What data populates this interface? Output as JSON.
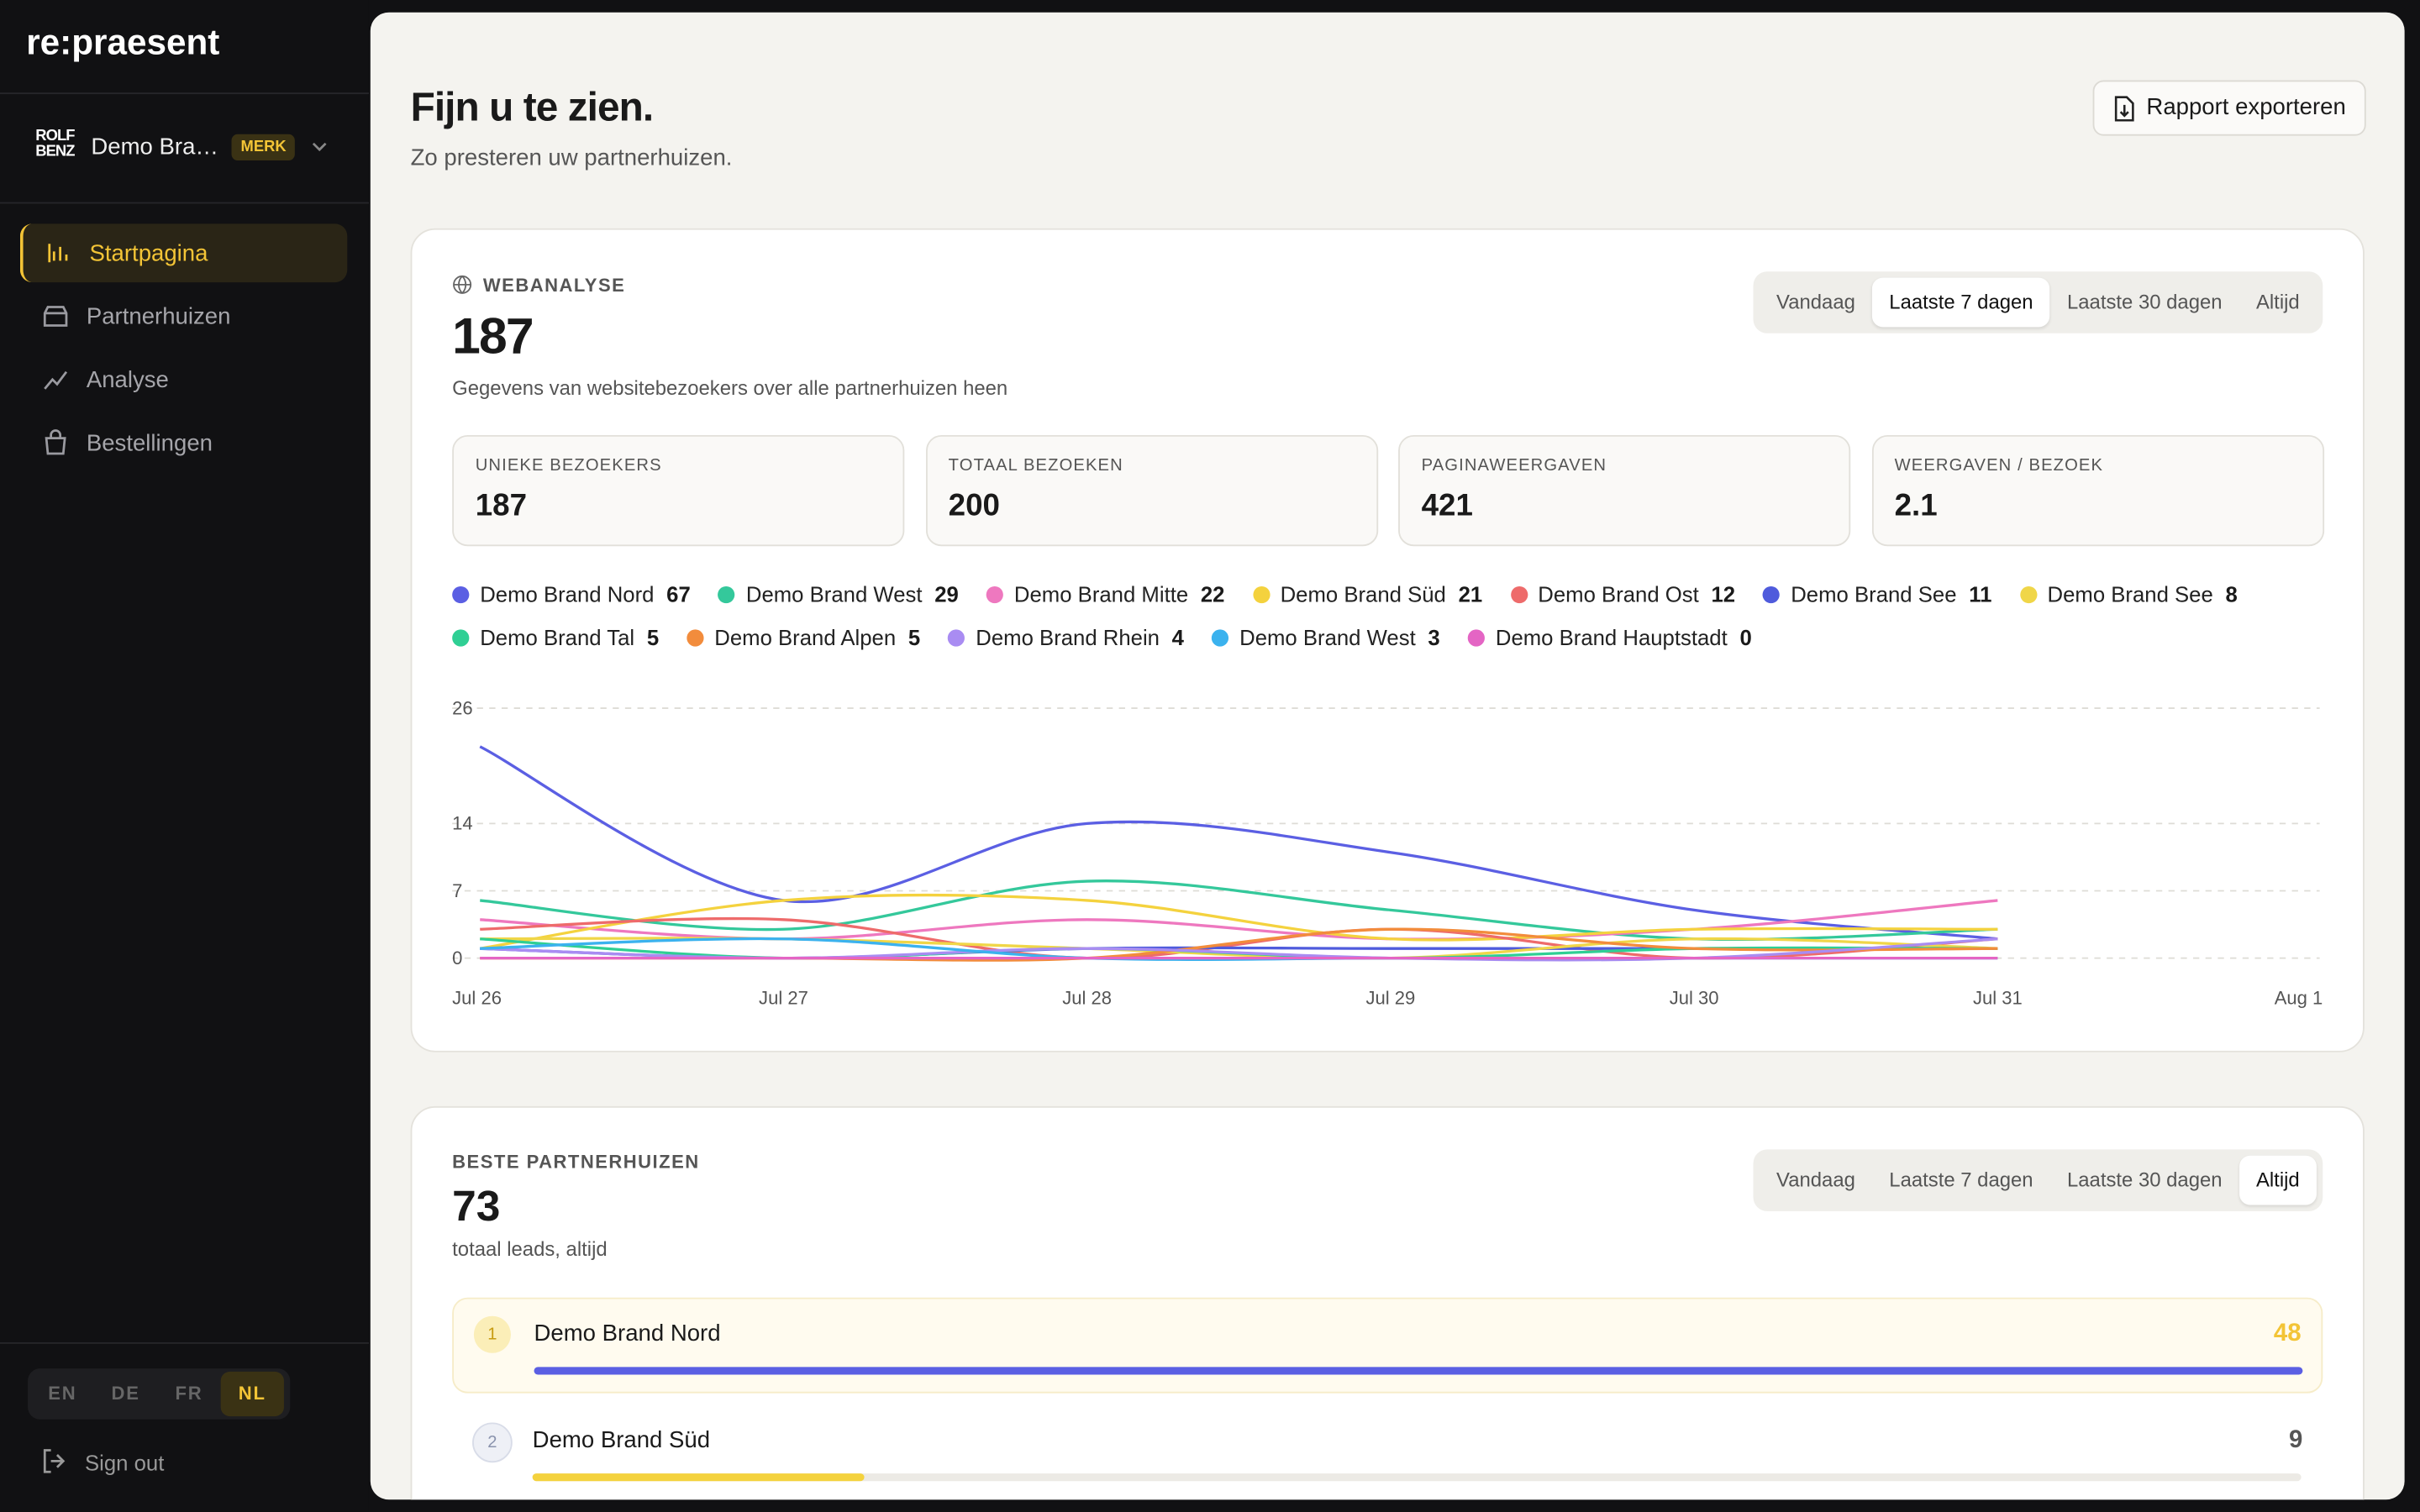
{
  "sidebar": {
    "brand": "re:praesent",
    "account": {
      "logo": [
        "ROLF",
        "BENZ"
      ],
      "name": "Demo Bra…",
      "badge": "MERK"
    },
    "nav": [
      "Startpagina",
      "Partnerhuizen",
      "Analyse",
      "Bestellingen"
    ],
    "active_nav": 0,
    "languages": [
      "EN",
      "DE",
      "FR",
      "NL"
    ],
    "active_language": 3,
    "sign_out": "Sign out"
  },
  "header": {
    "title": "Fijn u te zien.",
    "subtitle": "Zo presteren uw partnerhuizen.",
    "button": "Rapport exporteren"
  },
  "chart_data": {
    "type": "line",
    "title": "WEBANALYSE",
    "value": 187,
    "subtitle": "Gegevens van websitebezoekers over alle partnerhuizen heen",
    "ranges": [
      "Vandaag",
      "Laatste 7 dagen",
      "Laatste 30 dagen",
      "Altijd"
    ],
    "active_range": 1,
    "stats": [
      {
        "label": "UNIEKE BEZOEKERS",
        "value": 187
      },
      {
        "label": "TOTAAL BEZOEKEN",
        "value": 200
      },
      {
        "label": "PAGINAWEERGAVEN",
        "value": 421
      },
      {
        "label": "WEERGAVEN / BEZOEK",
        "value": 2.1
      }
    ],
    "categories": [
      "Jul 26",
      "Jul 27",
      "Jul 28",
      "Jul 29",
      "Jul 30",
      "Jul 31",
      "Aug 1"
    ],
    "ylim": [
      0,
      26
    ],
    "yticks": [
      0,
      7,
      14,
      26
    ],
    "grid": true,
    "series": [
      {
        "name": "Demo Brand Nord",
        "color": "#5b5fe3",
        "total": 67,
        "values": [
          22,
          6,
          14,
          11,
          5,
          2,
          null
        ]
      },
      {
        "name": "Demo Brand West",
        "color": "#34c89b",
        "total": 29,
        "values": [
          6,
          3,
          8,
          5,
          2,
          3,
          null
        ]
      },
      {
        "name": "Demo Brand Mitte",
        "color": "#ee78bf",
        "total": 22,
        "values": [
          4,
          2,
          4,
          2,
          3,
          6,
          null
        ]
      },
      {
        "name": "Demo Brand Süd",
        "color": "#f4d23e",
        "total": 21,
        "values": [
          1,
          6,
          6,
          2,
          3,
          3,
          null
        ]
      },
      {
        "name": "Demo Brand Ost",
        "color": "#ee6b6b",
        "total": 12,
        "values": [
          3,
          4,
          0,
          3,
          0,
          2,
          null
        ]
      },
      {
        "name": "Demo Brand See",
        "color": "#4f5bdc",
        "total": 11,
        "values": [
          1,
          0,
          1,
          1,
          1,
          1,
          null
        ]
      },
      {
        "name": "Demo Brand See",
        "color": "#f0d648",
        "total": 8,
        "values": [
          2,
          2,
          1,
          0,
          2,
          1,
          null
        ]
      },
      {
        "name": "Demo Brand Tal",
        "color": "#2fcf94",
        "total": 5,
        "values": [
          2,
          0,
          1,
          0,
          1,
          1,
          null
        ]
      },
      {
        "name": "Demo Brand Alpen",
        "color": "#f28c3c",
        "total": 5,
        "values": [
          0,
          0,
          0,
          3,
          1,
          1,
          null
        ]
      },
      {
        "name": "Demo Brand Rhein",
        "color": "#a98cf2",
        "total": 4,
        "values": [
          1,
          0,
          1,
          0,
          0,
          2,
          null
        ]
      },
      {
        "name": "Demo Brand West",
        "color": "#3bb2ee",
        "total": 3,
        "values": [
          1,
          2,
          0,
          0,
          0,
          0,
          null
        ]
      },
      {
        "name": "Demo Brand Hauptstadt",
        "color": "#e465c4",
        "total": 0,
        "values": [
          0,
          0,
          0,
          0,
          0,
          0,
          null
        ]
      }
    ]
  },
  "partners": {
    "title": "BESTE PARTNERHUIZEN",
    "value": 73,
    "subtitle": "totaal leads, altijd",
    "ranges": [
      "Vandaag",
      "Laatste 7 dagen",
      "Laatste 30 dagen",
      "Altijd"
    ],
    "active_range": 3,
    "rows": [
      {
        "rank": 1,
        "name": "Demo Brand Nord",
        "leads": 48,
        "color": "#5b5fe3"
      },
      {
        "rank": 2,
        "name": "Demo Brand Süd",
        "leads": 9,
        "color": "#f4d23e"
      }
    ]
  }
}
